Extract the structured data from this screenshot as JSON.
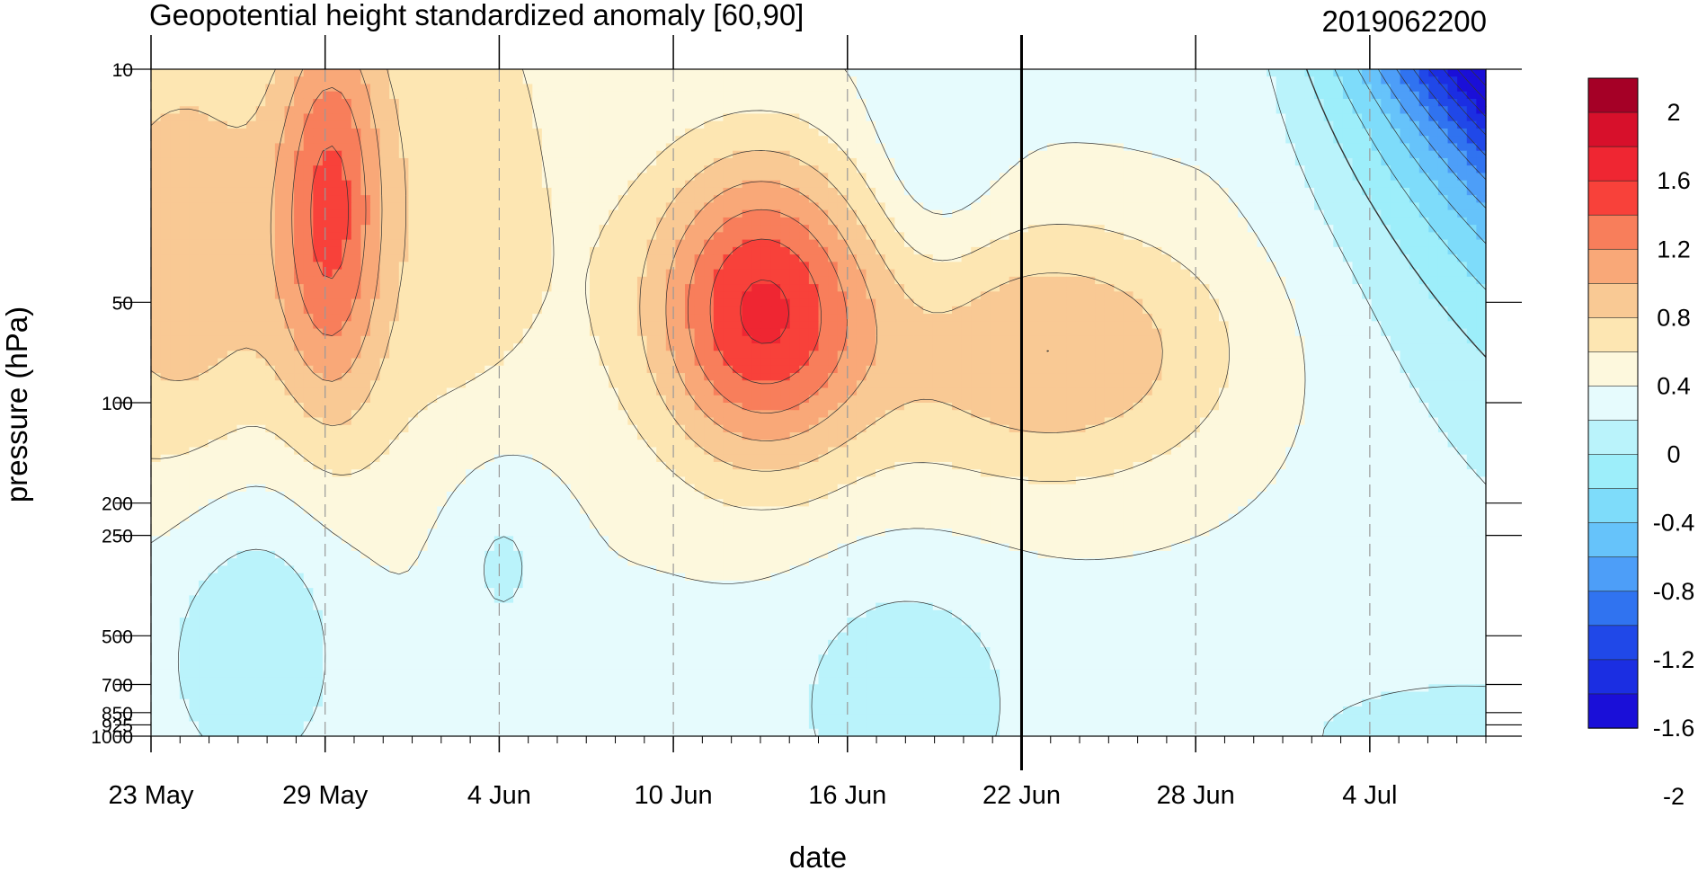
{
  "chart_data": {
    "type": "contour",
    "title": "Geopotential height standardized anomaly [60,90]",
    "date_label": "2019062200",
    "xlabel": "date",
    "ylabel": "pressure (hPa)",
    "x_ticks": [
      {
        "date": "2019-05-23",
        "label": "23 May"
      },
      {
        "date": "2019-05-29",
        "label": "29 May"
      },
      {
        "date": "2019-06-04",
        "label": "4 Jun"
      },
      {
        "date": "2019-06-10",
        "label": "10 Jun"
      },
      {
        "date": "2019-06-16",
        "label": "16 Jun"
      },
      {
        "date": "2019-06-22",
        "label": "22 Jun"
      },
      {
        "date": "2019-06-28",
        "label": "28 Jun"
      },
      {
        "date": "2019-07-04",
        "label": "4 Jul"
      }
    ],
    "x_range": [
      "2019-05-23",
      "2019-07-08"
    ],
    "y_scale": "log",
    "y_reversed": true,
    "y_range": [
      10,
      1000
    ],
    "y_ticks": [
      10,
      50,
      100,
      200,
      250,
      500,
      700,
      850,
      925,
      1000
    ],
    "forecast_start": "2019-06-22",
    "colorbar": {
      "labels": [
        "2",
        "1.6",
        "1.2",
        "0.8",
        "0.4",
        "0",
        "-0.4",
        "-0.8",
        "-1.2",
        "-1.6",
        "-2"
      ],
      "colors": [
        "#a50026",
        "#d7102b",
        "#ef2632",
        "#f8413a",
        "#f87e5b",
        "#f9a878",
        "#f9c994",
        "#fde6b2",
        "#fdf8dd",
        "#e6fbfd",
        "#baf3fb",
        "#9deefa",
        "#7edcfa",
        "#66c3fa",
        "#4d9ef8",
        "#3073f0",
        "#2048e8",
        "#1b2ee2",
        "#1a0fd8"
      ]
    },
    "sampled_values": [
      {
        "date": "2019-06-13",
        "pressure": 50,
        "value": 1.5
      },
      {
        "date": "2019-05-29",
        "pressure": 50,
        "value": 1.2
      },
      {
        "date": "2019-06-24",
        "pressure": 70,
        "value": 1.0
      },
      {
        "date": "2019-06-19",
        "pressure": 20,
        "value": 0.3
      },
      {
        "date": "2019-06-03",
        "pressure": 250,
        "value": 0.1
      },
      {
        "date": "2019-07-07",
        "pressure": 10,
        "value": -1.5
      },
      {
        "date": "2019-07-01",
        "pressure": 10,
        "value": -0.6
      },
      {
        "date": "2019-06-17",
        "pressure": 1000,
        "value": -0.2
      }
    ]
  }
}
